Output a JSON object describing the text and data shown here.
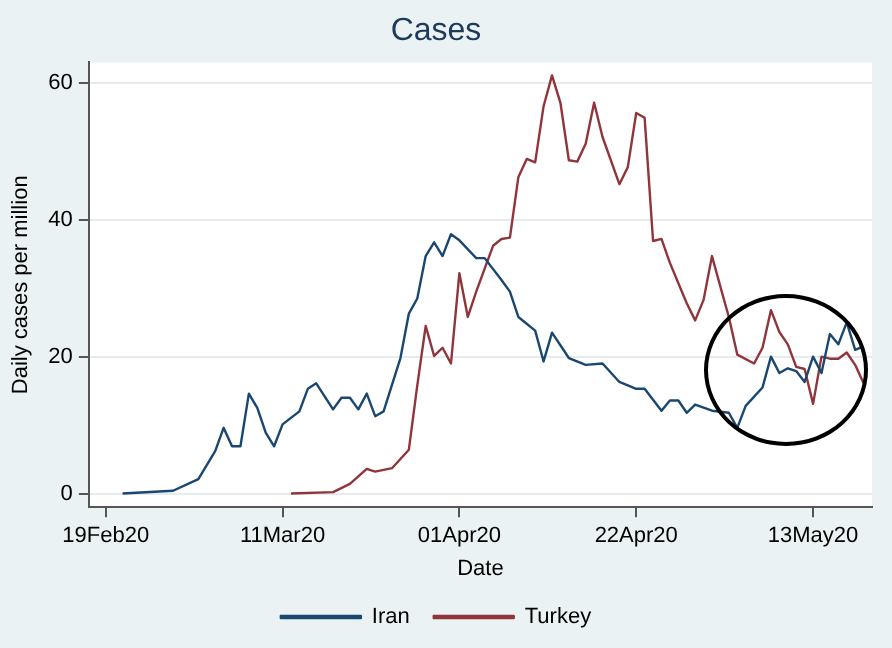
{
  "chart_data": {
    "type": "line",
    "title": "Cases",
    "xlabel": "Date",
    "ylabel": "Daily cases per million",
    "xlim": [
      "2020-02-17",
      "2020-05-20"
    ],
    "xticks": [
      {
        "value": "2020-02-19",
        "label": "19Feb20"
      },
      {
        "value": "2020-03-11",
        "label": "11Mar20"
      },
      {
        "value": "2020-04-01",
        "label": "01Apr20"
      },
      {
        "value": "2020-04-22",
        "label": "22Apr20"
      },
      {
        "value": "2020-05-13",
        "label": "13May20"
      }
    ],
    "ylim": [
      -2,
      63
    ],
    "yticks": [
      0,
      20,
      40,
      60
    ],
    "grid": "y",
    "legend": "bottom",
    "marker": "none",
    "line_style": "solid",
    "series": [
      {
        "name": "Iran",
        "color": "#1a476f",
        "x": [
          "2020-02-21",
          "2020-02-27",
          "2020-03-01",
          "2020-03-03",
          "2020-03-04",
          "2020-03-05",
          "2020-03-06",
          "2020-03-07",
          "2020-03-08",
          "2020-03-09",
          "2020-03-10",
          "2020-03-11",
          "2020-03-13",
          "2020-03-14",
          "2020-03-15",
          "2020-03-17",
          "2020-03-18",
          "2020-03-19",
          "2020-03-20",
          "2020-03-21",
          "2020-03-22",
          "2020-03-23",
          "2020-03-25",
          "2020-03-26",
          "2020-03-27",
          "2020-03-28",
          "2020-03-29",
          "2020-03-30",
          "2020-03-31",
          "2020-04-01",
          "2020-04-03",
          "2020-04-04",
          "2020-04-06",
          "2020-04-07",
          "2020-04-08",
          "2020-04-10",
          "2020-04-11",
          "2020-04-12",
          "2020-04-14",
          "2020-04-16",
          "2020-04-18",
          "2020-04-20",
          "2020-04-22",
          "2020-04-23",
          "2020-04-25",
          "2020-04-26",
          "2020-04-27",
          "2020-04-28",
          "2020-04-29",
          "2020-05-01",
          "2020-05-03",
          "2020-05-04",
          "2020-05-05",
          "2020-05-07",
          "2020-05-08",
          "2020-05-09",
          "2020-05-10",
          "2020-05-11",
          "2020-05-12",
          "2020-05-13",
          "2020-05-14",
          "2020-05-15",
          "2020-05-16",
          "2020-05-17",
          "2020-05-18",
          "2020-05-19"
        ],
        "values": [
          0,
          0.4,
          2.1,
          6.2,
          9.6,
          6.9,
          6.9,
          14.6,
          12.5,
          8.9,
          6.9,
          10.1,
          12,
          15.3,
          16.1,
          12.3,
          14,
          14,
          12.3,
          14.6,
          11.3,
          12,
          19.8,
          26.3,
          28.5,
          34.7,
          36.7,
          34.7,
          37.9,
          37,
          34.4,
          34.4,
          31.2,
          29.5,
          25.8,
          23.8,
          19.3,
          23.5,
          19.8,
          18.8,
          19,
          16.3,
          15.3,
          15.3,
          12.1,
          13.6,
          13.6,
          11.8,
          13,
          12.1,
          11.8,
          9.6,
          12.8,
          15.5,
          20,
          17.6,
          18.3,
          17.9,
          16.3,
          20,
          17.6,
          23.3,
          21.8,
          25,
          21,
          21.5
        ]
      },
      {
        "name": "Turkey",
        "color": "#90353b",
        "x": [
          "2020-03-12",
          "2020-03-17",
          "2020-03-19",
          "2020-03-21",
          "2020-03-22",
          "2020-03-24",
          "2020-03-26",
          "2020-03-27",
          "2020-03-28",
          "2020-03-29",
          "2020-03-30",
          "2020-03-31",
          "2020-04-01",
          "2020-04-02",
          "2020-04-03",
          "2020-04-05",
          "2020-04-06",
          "2020-04-07",
          "2020-04-08",
          "2020-04-09",
          "2020-04-10",
          "2020-04-11",
          "2020-04-12",
          "2020-04-13",
          "2020-04-14",
          "2020-04-15",
          "2020-04-16",
          "2020-04-17",
          "2020-04-18",
          "2020-04-20",
          "2020-04-21",
          "2020-04-22",
          "2020-04-23",
          "2020-04-24",
          "2020-04-25",
          "2020-04-26",
          "2020-04-28",
          "2020-04-29",
          "2020-04-30",
          "2020-05-01",
          "2020-05-02",
          "2020-05-03",
          "2020-05-04",
          "2020-05-06",
          "2020-05-07",
          "2020-05-08",
          "2020-05-09",
          "2020-05-10",
          "2020-05-11",
          "2020-05-12",
          "2020-05-13",
          "2020-05-14",
          "2020-05-15",
          "2020-05-16",
          "2020-05-17",
          "2020-05-18",
          "2020-05-19"
        ],
        "values": [
          0,
          0.2,
          1.4,
          3.6,
          3.2,
          3.7,
          6.4,
          15.8,
          24.5,
          20.1,
          21.3,
          19,
          32.2,
          25.8,
          29.5,
          36.2,
          37.2,
          37.4,
          46.2,
          48.9,
          48.4,
          56.6,
          61.1,
          57.1,
          48.7,
          48.5,
          51.1,
          57.1,
          52.1,
          45.2,
          47.7,
          55.6,
          54.9,
          36.9,
          37.2,
          33.7,
          27.8,
          25.3,
          28.3,
          34.7,
          30.2,
          25.8,
          20.3,
          19,
          21.3,
          26.8,
          23.6,
          21.8,
          18.5,
          18.2,
          13.1,
          20,
          19.7,
          19.7,
          20.6,
          18.8,
          16.1
        ]
      }
    ]
  }
}
